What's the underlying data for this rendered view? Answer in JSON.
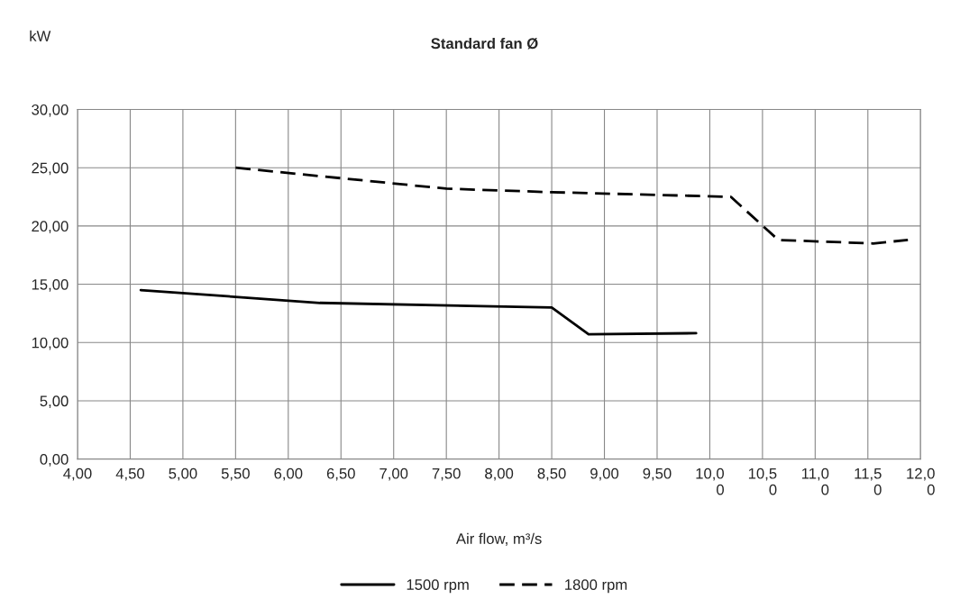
{
  "chart_data": {
    "type": "line",
    "title": "Standard fan Ø",
    "ylabel": "kW",
    "xlabel": "Air flow, m³/s",
    "series": [
      {
        "name": "1500 rpm",
        "color": "#000000",
        "line_style": "solid",
        "x": [
          4.6,
          6.3,
          8.5,
          8.85,
          9.87
        ],
        "values": [
          14.5,
          13.4,
          13.0,
          10.7,
          10.8
        ]
      },
      {
        "name": "1800 rpm",
        "color": "#000000",
        "line_style": "dashed",
        "x": [
          5.5,
          7.5,
          8.5,
          10.2,
          10.65,
          11.55,
          11.88
        ],
        "values": [
          25.0,
          23.2,
          22.9,
          22.5,
          18.8,
          18.5,
          18.8
        ]
      }
    ],
    "xlim": [
      4.0,
      12.0
    ],
    "xticks": [
      {
        "value": 4.0,
        "label": "4,00"
      },
      {
        "value": 4.5,
        "label": "4,50"
      },
      {
        "value": 5.0,
        "label": "5,00"
      },
      {
        "value": 5.5,
        "label": "5,50"
      },
      {
        "value": 6.0,
        "label": "6,00"
      },
      {
        "value": 6.5,
        "label": "6,50"
      },
      {
        "value": 7.0,
        "label": "7,00"
      },
      {
        "value": 7.5,
        "label": "7,50"
      },
      {
        "value": 8.0,
        "label": "8,00"
      },
      {
        "value": 8.5,
        "label": "8,50"
      },
      {
        "value": 9.0,
        "label": "9,00"
      },
      {
        "value": 9.5,
        "label": "9,50"
      },
      {
        "value": 10.0,
        "label": "10,0\n0"
      },
      {
        "value": 10.5,
        "label": "10,5\n0"
      },
      {
        "value": 11.0,
        "label": "11,0\n0"
      },
      {
        "value": 11.5,
        "label": "11,5\n0"
      },
      {
        "value": 12.0,
        "label": "12,0\n0"
      }
    ],
    "ylim": [
      0,
      30
    ],
    "yticks": [
      {
        "value": 0,
        "label": "0,00"
      },
      {
        "value": 5,
        "label": "5,00"
      },
      {
        "value": 10,
        "label": "10,00"
      },
      {
        "value": 15,
        "label": "15,00"
      },
      {
        "value": 20,
        "label": "20,00"
      },
      {
        "value": 25,
        "label": "25,00"
      },
      {
        "value": 30,
        "label": "30,00"
      }
    ],
    "grid": true,
    "legend": "bottom"
  }
}
